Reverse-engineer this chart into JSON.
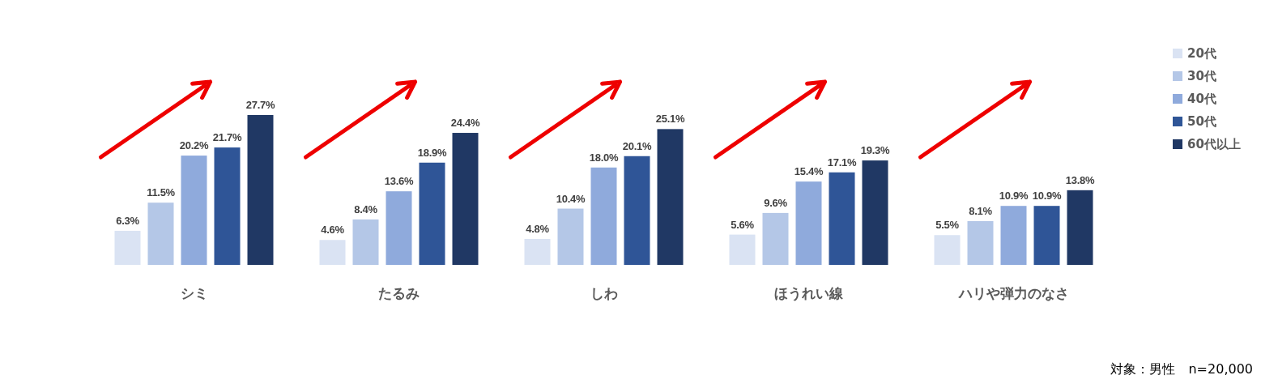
{
  "chart_data": {
    "type": "bar",
    "categories": [
      "シミ",
      "たるみ",
      "しわ",
      "ほうれい線",
      "ハリや弾力のなさ"
    ],
    "series": [
      {
        "name": "20代",
        "color": "#dae3f3",
        "values": [
          6.3,
          4.6,
          4.8,
          5.6,
          5.5
        ],
        "value_labels": [
          "6.3%",
          "4.6%",
          "4.8%",
          "5.6%",
          "5.5%"
        ]
      },
      {
        "name": "30代",
        "color": "#b4c7e7",
        "values": [
          11.5,
          8.4,
          10.4,
          9.6,
          8.1
        ],
        "value_labels": [
          "11.5%",
          "8.4%",
          "10.4%",
          "9.6%",
          "8.1%"
        ]
      },
      {
        "name": "40代",
        "color": "#8faadc",
        "values": [
          20.2,
          13.6,
          18.0,
          15.4,
          10.9
        ],
        "value_labels": [
          "20.2%",
          "13.6%",
          "18.0%",
          "15.4%",
          "10.9%"
        ]
      },
      {
        "name": "50代",
        "color": "#2f5597",
        "values": [
          21.7,
          18.9,
          20.1,
          17.1,
          10.9
        ],
        "value_labels": [
          "21.7%",
          "18.9%",
          "20.1%",
          "17.1%",
          "10.9%"
        ]
      },
      {
        "name": "60代以上",
        "color": "#203864",
        "values": [
          27.7,
          24.4,
          25.1,
          19.3,
          13.8
        ],
        "value_labels": [
          "27.7%",
          "24.4%",
          "25.1%",
          "19.3%",
          "13.8%"
        ]
      }
    ],
    "legend": "top right",
    "tick_labels": "x",
    "annotations": [
      "対象：男性　n=20,000"
    ]
  }
}
